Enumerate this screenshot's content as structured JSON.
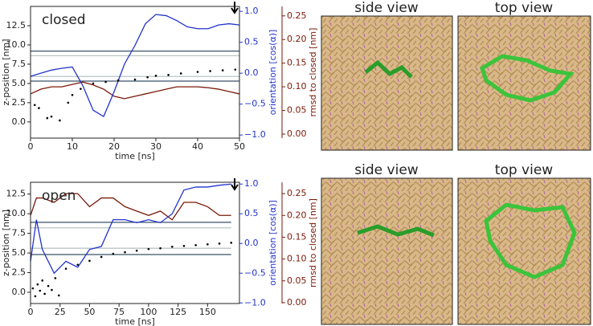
{
  "chart_data": [
    {
      "type": "line",
      "title": "closed",
      "xlabel": "time [ns]",
      "ylabel": "z-position [nm]",
      "y2label": "orientation [cos(α)]",
      "y3label": "rmsd to closed [nm]",
      "xlim": [
        0,
        50
      ],
      "xticks": [
        0,
        10,
        20,
        30,
        40,
        50
      ],
      "ylim": [
        -2.1,
        15
      ],
      "yticks": [
        {
          "value": 0,
          "label": "0.0"
        },
        2.5,
        {
          "value": 5,
          "label": "5.0"
        },
        7.5,
        {
          "value": 10,
          "label": "10.0"
        },
        12.5
      ],
      "y2lim": [
        -1.05,
        1.08
      ],
      "y2ticks": [
        {
          "value": -1,
          "label": "−1.0"
        },
        {
          "value": -0.5,
          "label": "−0.5"
        },
        {
          "value": 0,
          "label": "0.0"
        },
        0.5,
        {
          "value": 1,
          "label": "1.0"
        }
      ],
      "y3lim": [
        -0.0085,
        0.27
      ],
      "y3ticks": [
        {
          "value": 0,
          "label": "0.00"
        },
        0.05,
        {
          "value": 0.1,
          "label": "0.10"
        },
        0.15,
        {
          "value": 0.2,
          "label": "0.20"
        },
        0.25
      ],
      "x": [
        0,
        2.5,
        5,
        7.5,
        10,
        12.5,
        15,
        17.5,
        20,
        22.5,
        25,
        27.5,
        30,
        32.5,
        35,
        37.5,
        40,
        42.5,
        45,
        47.5,
        50
      ],
      "series": [
        {
          "color": "#b9c4c4",
          "values": [
            8.6,
            8.6,
            8.6,
            8.6,
            8.6,
            8.6,
            8.6,
            8.6,
            8.6,
            8.6,
            8.6,
            8.6,
            8.6,
            8.6,
            8.6,
            8.6,
            8.6,
            8.6,
            8.6,
            8.6,
            8.6
          ]
        },
        {
          "color": "#b9c4c4",
          "values": [
            5.9,
            5.9,
            5.9,
            5.9,
            5.9,
            5.9,
            5.9,
            5.9,
            5.9,
            5.9,
            5.9,
            5.9,
            5.9,
            5.9,
            5.9,
            5.9,
            5.9,
            5.9,
            5.9,
            5.9,
            5.9
          ]
        },
        {
          "color": "#3a5068",
          "values": [
            9.2,
            9.2,
            9.2,
            9.2,
            9.2,
            9.2,
            9.2,
            9.2,
            9.2,
            9.2,
            9.2,
            9.2,
            9.2,
            9.2,
            9.2,
            9.2,
            9.2,
            9.2,
            9.2,
            9.2,
            9.2
          ]
        },
        {
          "color": "#3a5068",
          "values": [
            5.3,
            5.3,
            5.3,
            5.3,
            5.3,
            5.3,
            5.3,
            5.3,
            5.3,
            5.3,
            5.3,
            5.3,
            5.3,
            5.3,
            5.3,
            5.3,
            5.3,
            5.3,
            5.3,
            5.3,
            5.3
          ]
        },
        {
          "color": "#7a1a0a",
          "axis": "y3",
          "values": [
            0.085,
            0.095,
            0.1,
            0.1,
            0.105,
            0.11,
            0.104,
            0.095,
            0.08,
            0.075,
            0.08,
            0.085,
            0.09,
            0.095,
            0.1,
            0.1,
            0.1,
            0.098,
            0.095,
            0.09,
            0.085
          ]
        },
        {
          "color": "#2233cc",
          "axis": "y2",
          "values": [
            -0.05,
            0.0,
            0.05,
            0.08,
            0.1,
            -0.2,
            -0.6,
            -0.7,
            -0.3,
            0.15,
            0.45,
            0.8,
            0.95,
            0.93,
            0.85,
            0.75,
            0.72,
            0.72,
            0.78,
            0.8,
            0.78
          ]
        },
        {
          "color": "#000000",
          "style": "dots",
          "x": [
            1,
            2,
            4,
            5,
            7,
            9,
            10,
            12,
            15,
            18,
            21,
            25,
            28,
            30,
            33,
            36,
            40,
            43,
            46,
            49
          ],
          "values": [
            2.2,
            1.8,
            0.5,
            0.7,
            0.2,
            2.5,
            3.5,
            4.3,
            5.0,
            5.2,
            5.4,
            5.5,
            5.8,
            6.0,
            6.1,
            6.3,
            6.5,
            6.6,
            6.7,
            6.8
          ]
        }
      ]
    },
    {
      "type": "line",
      "title": "open",
      "xlabel": "time [ns]",
      "ylabel": "z-position [nm]",
      "y2label": "orientation [cos(α)]",
      "y3label": "rmsd to closed [nm]",
      "xlim": [
        0,
        177
      ],
      "xticks": [
        0,
        25,
        50,
        75,
        100,
        125,
        150
      ],
      "ylim": [
        -1.43,
        14
      ],
      "yticks": [
        {
          "value": 0,
          "label": "0.0"
        },
        2.5,
        {
          "value": 5,
          "label": "5.0"
        },
        7.5,
        {
          "value": 10,
          "label": "10.0"
        },
        12.5
      ],
      "y2lim": [
        -1.01,
        1.03
      ],
      "y2ticks": [
        {
          "value": -1,
          "label": "−1.0"
        },
        {
          "value": -0.5,
          "label": "−0.5"
        },
        {
          "value": 0,
          "label": "0.0"
        },
        0.5,
        {
          "value": 1,
          "label": "1.0"
        }
      ],
      "y3lim": [
        -0.002,
        0.276
      ],
      "y3ticks": [
        {
          "value": 0,
          "label": "0.00"
        },
        0.05,
        {
          "value": 0.1,
          "label": "0.10"
        },
        0.15,
        {
          "value": 0.2,
          "label": "0.20"
        },
        0.25
      ],
      "x": [
        0,
        5,
        10,
        15,
        20,
        30,
        40,
        50,
        60,
        70,
        80,
        90,
        100,
        110,
        120,
        130,
        140,
        150,
        160,
        170
      ],
      "series": [
        {
          "color": "#b9c4c4",
          "values": [
            8.2,
            8.2,
            8.2,
            8.2,
            8.2,
            8.2,
            8.2,
            8.2,
            8.2,
            8.2,
            8.2,
            8.2,
            8.2,
            8.2,
            8.2,
            8.2,
            8.2,
            8.2,
            8.2,
            8.2
          ]
        },
        {
          "color": "#b9c4c4",
          "values": [
            5.6,
            5.6,
            5.6,
            5.6,
            5.6,
            5.6,
            5.6,
            5.6,
            5.6,
            5.6,
            5.6,
            5.6,
            5.6,
            5.6,
            5.6,
            5.6,
            5.6,
            5.6,
            5.6,
            5.6
          ]
        },
        {
          "color": "#3a5068",
          "values": [
            8.9,
            8.9,
            8.9,
            8.9,
            8.9,
            8.9,
            8.9,
            8.9,
            8.9,
            8.9,
            8.9,
            8.9,
            8.9,
            8.9,
            8.9,
            8.9,
            8.9,
            8.9,
            8.9,
            8.9
          ]
        },
        {
          "color": "#3a5068",
          "values": [
            4.8,
            4.8,
            4.8,
            4.8,
            4.8,
            4.8,
            4.8,
            4.8,
            4.8,
            4.8,
            4.8,
            4.8,
            4.8,
            4.8,
            4.8,
            4.8,
            4.8,
            4.8,
            4.8,
            4.8
          ]
        },
        {
          "color": "#7a1a0a",
          "axis": "y3",
          "values": [
            0.2,
            0.24,
            0.24,
            0.235,
            0.23,
            0.25,
            0.25,
            0.22,
            0.24,
            0.24,
            0.22,
            0.21,
            0.2,
            0.21,
            0.19,
            0.23,
            0.23,
            0.22,
            0.2,
            0.2
          ]
        },
        {
          "color": "#2233cc",
          "axis": "y2",
          "values": [
            -0.3,
            0.4,
            -0.1,
            -0.3,
            -0.5,
            -0.3,
            -0.4,
            -0.1,
            -0.05,
            0.4,
            0.4,
            0.35,
            0.4,
            0.35,
            0.5,
            0.9,
            0.95,
            0.95,
            0.98,
            1.0
          ]
        },
        {
          "color": "#000000",
          "style": "dots",
          "x": [
            2,
            4,
            6,
            8,
            10,
            12,
            15,
            18,
            21,
            24,
            30,
            40,
            50,
            60,
            70,
            80,
            90,
            100,
            110,
            120,
            130,
            140,
            150,
            160,
            170
          ],
          "values": [
            0.5,
            -0.5,
            1.0,
            0.2,
            1.5,
            -0.2,
            0.8,
            0.3,
            1.8,
            -0.4,
            3.0,
            3.5,
            4.0,
            4.5,
            4.9,
            5.1,
            5.3,
            5.5,
            5.6,
            5.8,
            5.9,
            6.0,
            6.1,
            6.2,
            6.3
          ]
        }
      ]
    }
  ],
  "images": [
    [
      "side view",
      "top view"
    ],
    [
      "side view",
      "top view"
    ]
  ]
}
